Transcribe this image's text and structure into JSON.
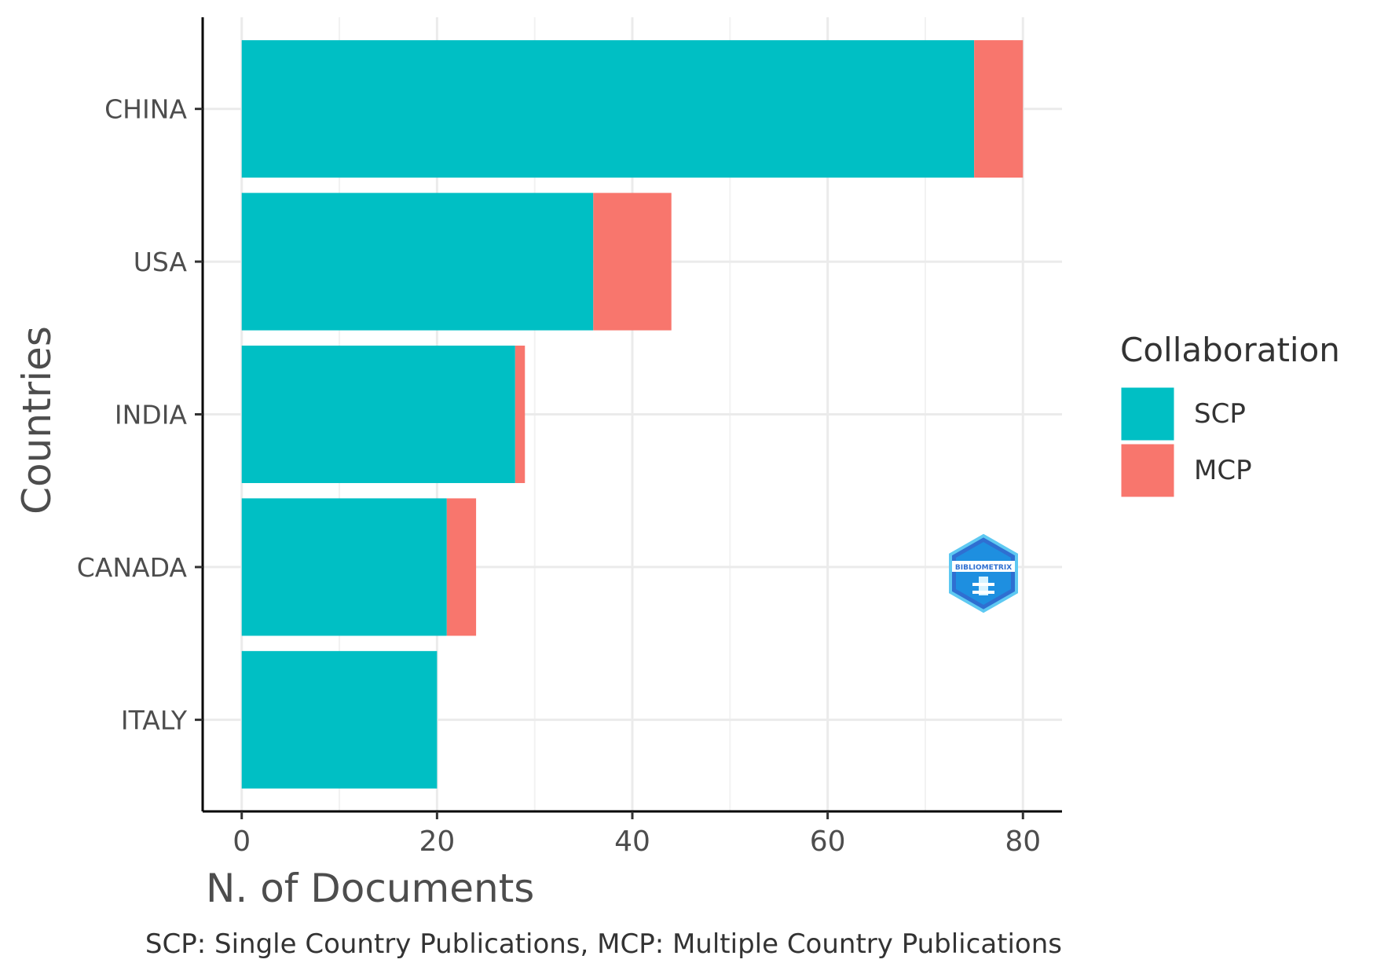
{
  "chart_data": {
    "type": "bar",
    "orientation": "horizontal",
    "stacked": true,
    "categories": [
      "CHINA",
      "USA",
      "INDIA",
      "CANADA",
      "ITALY"
    ],
    "series": [
      {
        "name": "SCP",
        "color": "#00BFC4",
        "values": [
          75,
          36,
          28,
          21,
          20
        ]
      },
      {
        "name": "MCP",
        "color": "#F8766D",
        "values": [
          5,
          8,
          1,
          3,
          0
        ]
      }
    ],
    "xlabel": "N. of Documents",
    "ylabel": "Countries",
    "xlim": [
      -4,
      84
    ],
    "xticks": [
      0,
      20,
      40,
      60,
      80
    ],
    "grid": true,
    "legend": {
      "title": "Collaboration",
      "position": "right"
    },
    "caption": "SCP: Single Country Publications, MCP: Multiple Country Publications"
  },
  "logo": {
    "name": "biblioshiny-logo-icon",
    "text": "BIBLIOMETRIX"
  }
}
